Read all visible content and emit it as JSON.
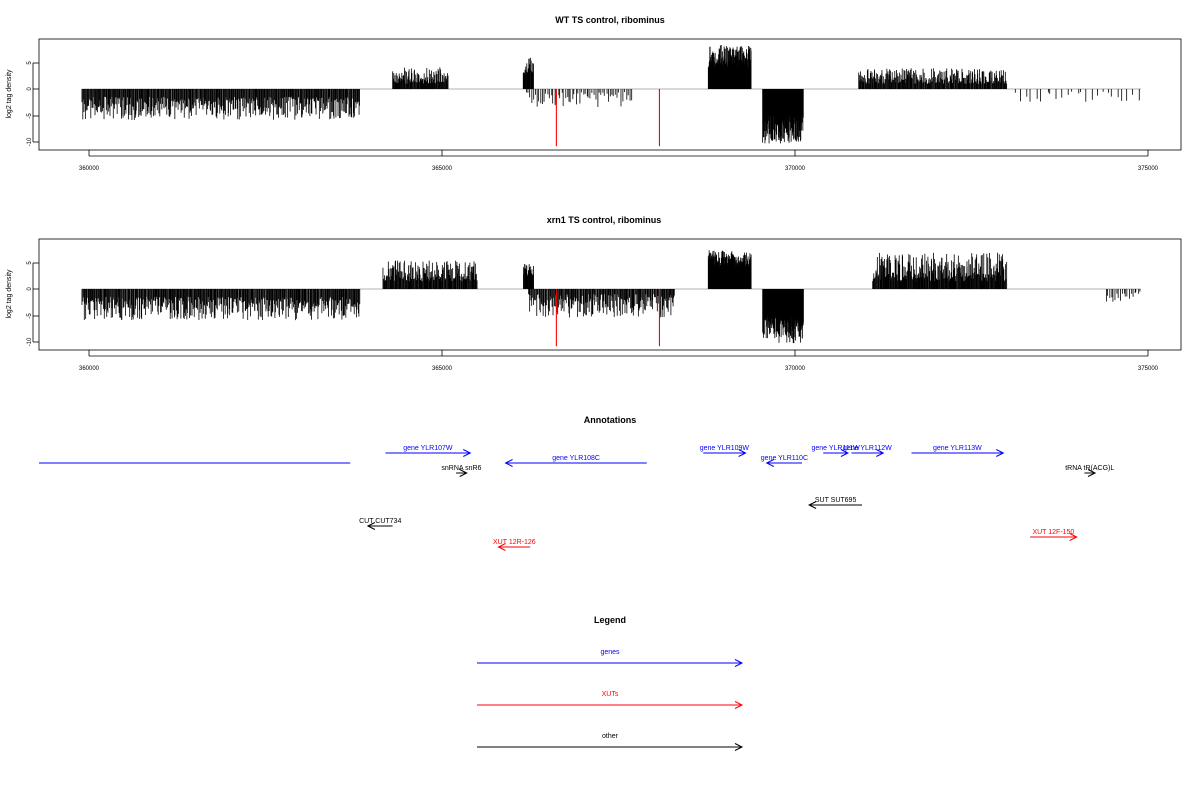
{
  "panels": [
    {
      "title": "WT TS control, ribominus",
      "ylabel": "log2 tag density",
      "xticks": [
        "360000",
        "365000",
        "370000",
        "375000"
      ],
      "yticks": [
        "5",
        "0",
        "-5",
        "-10"
      ]
    },
    {
      "title": "xrn1 TS control, ribominus",
      "ylabel": "log2 tag density",
      "xticks": [
        "360000",
        "365000",
        "370000",
        "375000"
      ],
      "yticks": [
        "5",
        "0",
        "-5",
        "-10"
      ]
    }
  ],
  "annotations": {
    "title": "Annotations",
    "items": [
      {
        "label": "",
        "color": "#0000ff",
        "x0": 357300,
        "x1": 363700,
        "row": 0,
        "dir": "none"
      },
      {
        "label": "gene YLR107W",
        "color": "#0000ff",
        "x0": 364200,
        "x1": 365400,
        "row": 1,
        "dir": "right"
      },
      {
        "label": "gene YLR108C",
        "color": "#0000ff",
        "x0": 365900,
        "x1": 367900,
        "row": 2,
        "dir": "left"
      },
      {
        "label": "snRNA snR6",
        "color": "#000000",
        "x0": 365200,
        "x1": 365350,
        "row": 3,
        "dir": "right"
      },
      {
        "label": "gene YLR109W",
        "color": "#0000ff",
        "x0": 368700,
        "x1": 369300,
        "row": 1,
        "dir": "right"
      },
      {
        "label": "gene YLR110C",
        "color": "#0000ff",
        "x0": 369600,
        "x1": 370100,
        "row": 2,
        "dir": "left"
      },
      {
        "label": "gene YLR111W",
        "color": "#0000ff",
        "x0": 370400,
        "x1": 370750,
        "row": 1,
        "dir": "right"
      },
      {
        "label": "gene YLR112W",
        "color": "#0000ff",
        "x0": 370800,
        "x1": 371250,
        "row": 1,
        "dir": "right"
      },
      {
        "label": "gene YLR113W",
        "color": "#0000ff",
        "x0": 371650,
        "x1": 372950,
        "row": 1,
        "dir": "right"
      },
      {
        "label": "tRNA tR(ACG)L",
        "color": "#000000",
        "x0": 374100,
        "x1": 374250,
        "row": 3,
        "dir": "right"
      },
      {
        "label": "SUT SUT695",
        "color": "#000000",
        "x0": 370200,
        "x1": 370950,
        "row": 4,
        "dir": "left"
      },
      {
        "label": "CUT CUT734",
        "color": "#000000",
        "x0": 363950,
        "x1": 364300,
        "row": 5,
        "dir": "left"
      },
      {
        "label": "XUT 12R-126",
        "color": "#ff0000",
        "x0": 365800,
        "x1": 366250,
        "row": 6,
        "dir": "left"
      },
      {
        "label": "XUT 12F-150",
        "color": "#ff0000",
        "x0": 373330,
        "x1": 373990,
        "row": 7,
        "dir": "right"
      }
    ]
  },
  "legend": {
    "title": "Legend",
    "items": [
      {
        "label": "genes",
        "color": "#0000ff"
      },
      {
        "label": "XUTs",
        "color": "#ff0000"
      },
      {
        "label": "other",
        "color": "#000000"
      }
    ]
  },
  "chart_data": [
    {
      "type": "bar",
      "title": "WT TS control, ribominus",
      "xlabel": "",
      "ylabel": "log2 tag density",
      "xlim": [
        359500,
        375500
      ],
      "ylim": [
        -11,
        9.5
      ],
      "grid": false,
      "base_color": "#000000",
      "highlight_color": "#ff0000",
      "regions": [
        {
          "x0": 359900,
          "x1": 363840,
          "sign": -1,
          "min": 1.5,
          "max": 6,
          "n": 420
        },
        {
          "x0": 364300,
          "x1": 365090,
          "sign": 1,
          "min": 1,
          "max": 4.2,
          "n": 110
        },
        {
          "x0": 366150,
          "x1": 366300,
          "sign": 1,
          "min": 2.5,
          "max": 6.2,
          "n": 25
        },
        {
          "x0": 366180,
          "x1": 367700,
          "sign": -1,
          "min": 0.5,
          "max": 3.5,
          "n": 60
        },
        {
          "x0": 368770,
          "x1": 369380,
          "sign": 1,
          "min": 4,
          "max": 8.5,
          "n": 160
        },
        {
          "x0": 369540,
          "x1": 370120,
          "sign": -1,
          "min": 5,
          "max": 10.5,
          "n": 160
        },
        {
          "x0": 370900,
          "x1": 373000,
          "sign": 1,
          "min": 1,
          "max": 4,
          "n": 260
        },
        {
          "x0": 373100,
          "x1": 374900,
          "sign": -1,
          "min": 0.5,
          "max": 2.5,
          "n": 25
        }
      ],
      "highlights": [
        {
          "x": 366620,
          "y": -11
        },
        {
          "x": 368080,
          "y": -11
        }
      ]
    },
    {
      "type": "bar",
      "title": "xrn1 TS control, ribominus",
      "xlabel": "",
      "ylabel": "log2 tag density",
      "xlim": [
        359500,
        375500
      ],
      "ylim": [
        -11,
        9.5
      ],
      "grid": false,
      "base_color": "#000000",
      "highlight_color": "#ff0000",
      "regions": [
        {
          "x0": 359900,
          "x1": 363840,
          "sign": -1,
          "min": 1.5,
          "max": 6,
          "n": 420
        },
        {
          "x0": 364160,
          "x1": 365500,
          "sign": 1,
          "min": 1.5,
          "max": 5.5,
          "n": 170
        },
        {
          "x0": 366150,
          "x1": 366300,
          "sign": 1,
          "min": 2.5,
          "max": 5,
          "n": 25
        },
        {
          "x0": 366220,
          "x1": 368300,
          "sign": -1,
          "min": 1,
          "max": 5.5,
          "n": 210
        },
        {
          "x0": 368770,
          "x1": 369380,
          "sign": 1,
          "min": 4,
          "max": 7.5,
          "n": 160
        },
        {
          "x0": 369540,
          "x1": 370120,
          "sign": -1,
          "min": 5,
          "max": 10.5,
          "n": 160
        },
        {
          "x0": 371100,
          "x1": 373000,
          "sign": 1,
          "min": 1.5,
          "max": 7,
          "n": 260
        },
        {
          "x0": 374400,
          "x1": 374900,
          "sign": -1,
          "min": 0.5,
          "max": 2.5,
          "n": 20
        }
      ],
      "highlights": [
        {
          "x": 366620,
          "y": -11
        },
        {
          "x": 368080,
          "y": -11
        }
      ]
    }
  ]
}
